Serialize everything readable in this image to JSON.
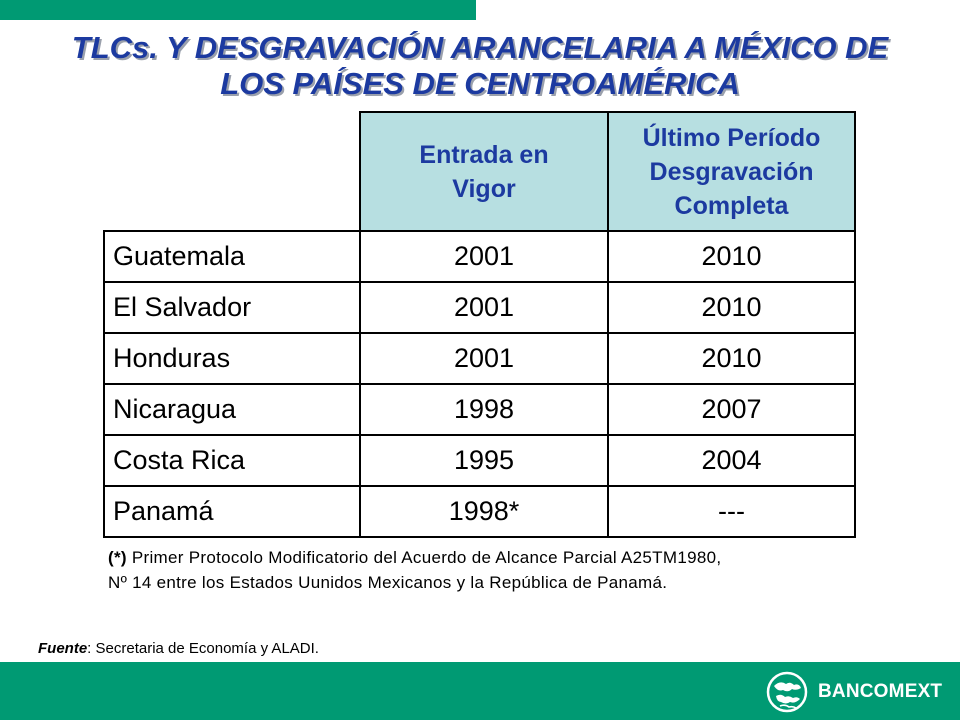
{
  "title": {
    "line1": "TLCs. Y DESGRAVACIÓN ARANCELARIA A MÉXICO DE",
    "line2": "LOS PAÍSES DE CENTROAMÉRICA"
  },
  "table": {
    "headers": {
      "col2": [
        "Entrada en",
        "Vigor"
      ],
      "col3": [
        "Último Período",
        "Desgravación",
        "Completa"
      ]
    },
    "rows": [
      {
        "country": "Guatemala",
        "entry": "2001",
        "last": "2010"
      },
      {
        "country": "El Salvador",
        "entry": "2001",
        "last": "2010"
      },
      {
        "country": "Honduras",
        "entry": "2001",
        "last": "2010"
      },
      {
        "country": "Nicaragua",
        "entry": "1998",
        "last": "2007"
      },
      {
        "country": "Costa Rica",
        "entry": "1995",
        "last": "2004"
      },
      {
        "country": "Panamá",
        "entry": "1998*",
        "last": "---"
      }
    ]
  },
  "note": {
    "mark": "(*)",
    "line1": " Primer Protocolo Modificatorio del Acuerdo de Alcance Parcial A25TM1980,",
    "line2": "Nº 14 entre los Estados Uunidos Mexicanos y la República de Panamá."
  },
  "source": {
    "label": "Fuente",
    "text": ": Secretaria de Economía y ALADI."
  },
  "logo": {
    "text": "BANCOMEXT",
    "icon": "globe-icon"
  },
  "colors": {
    "brand_green": "#009a73",
    "title_blue": "#1c3aa0",
    "header_fill": "#b7dfe1"
  }
}
